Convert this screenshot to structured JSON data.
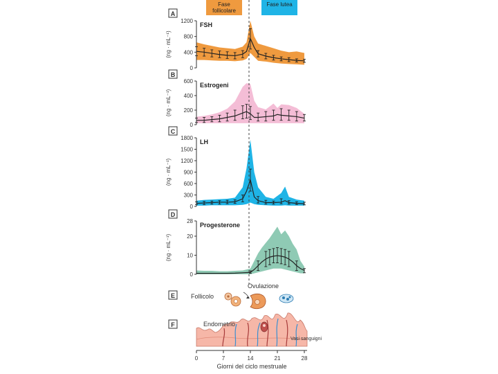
{
  "phases": {
    "follicular": "Fase follicolare",
    "luteal": "Fase lutea"
  },
  "unit_label": "(ng · mL⁻¹)",
  "x_axis": {
    "label": "Giorni del ciclo mestruale",
    "ticks": [
      "0",
      "7",
      "14",
      "21",
      "28"
    ]
  },
  "section_e": {
    "letter": "E",
    "label": "Follicolo",
    "ovulation": "Ovulazione"
  },
  "section_f": {
    "letter": "F",
    "label": "Endometrio",
    "vessels": "Vasi sanguigni"
  },
  "colors": {
    "fsh": "#ef9a3f",
    "estrogen": "#f4bdd6",
    "lh": "#1fb4e6",
    "progesterone": "#8fcab4",
    "endometrium": "#f6b7a8",
    "vessel_blue": "#3a8fd0",
    "vessel_red": "#a63a3a"
  },
  "chart_data": [
    {
      "id": "fsh",
      "type": "area",
      "letter": "A",
      "title": "FSH",
      "xlabel": "Giorni del ciclo mestruale",
      "ylabel": "(ng · mL⁻¹)",
      "ylim": [
        0,
        1200
      ],
      "yticks": [
        "0",
        "400",
        "800",
        "1200"
      ],
      "x": [
        0,
        2,
        4,
        6,
        8,
        10,
        12,
        13,
        14,
        15,
        16,
        18,
        20,
        22,
        24,
        26,
        28
      ],
      "mean": [
        420,
        400,
        370,
        340,
        320,
        310,
        350,
        420,
        750,
        520,
        360,
        300,
        260,
        230,
        210,
        190,
        180
      ],
      "upper": [
        650,
        600,
        560,
        520,
        500,
        480,
        540,
        650,
        1200,
        800,
        620,
        560,
        500,
        440,
        400,
        420,
        380
      ],
      "lower": [
        200,
        200,
        190,
        180,
        180,
        170,
        190,
        230,
        380,
        280,
        180,
        160,
        130,
        110,
        100,
        90,
        80
      ],
      "errbar": [
        [
          0,
          310,
          540
        ],
        [
          2,
          300,
          500
        ],
        [
          4,
          280,
          460
        ],
        [
          6,
          260,
          430
        ],
        [
          8,
          240,
          410
        ],
        [
          10,
          230,
          390
        ],
        [
          12,
          260,
          440
        ],
        [
          14,
          480,
          1000
        ],
        [
          16,
          280,
          440
        ],
        [
          18,
          230,
          370
        ],
        [
          20,
          200,
          320
        ],
        [
          22,
          180,
          280
        ],
        [
          24,
          160,
          260
        ],
        [
          26,
          150,
          230
        ],
        [
          28,
          140,
          220
        ]
      ]
    },
    {
      "id": "estrogeni",
      "type": "area",
      "letter": "B",
      "title": "Estrogeni",
      "xlabel": "Giorni del ciclo mestruale",
      "ylabel": "(ng · mL⁻¹)",
      "ylim": [
        0,
        600
      ],
      "yticks": [
        "0",
        "200",
        "400",
        "600"
      ],
      "x": [
        0,
        2,
        4,
        6,
        8,
        10,
        11,
        12,
        13,
        14,
        15,
        16,
        18,
        20,
        21,
        22,
        24,
        26,
        28
      ],
      "mean": [
        60,
        60,
        70,
        80,
        100,
        120,
        140,
        160,
        180,
        150,
        100,
        100,
        110,
        120,
        140,
        130,
        120,
        110,
        90
      ],
      "upper": [
        110,
        120,
        140,
        170,
        220,
        320,
        420,
        520,
        570,
        560,
        330,
        240,
        210,
        290,
        230,
        280,
        270,
        230,
        150
      ],
      "lower": [
        20,
        20,
        20,
        20,
        20,
        20,
        20,
        20,
        20,
        20,
        20,
        20,
        20,
        20,
        20,
        20,
        20,
        20,
        20
      ],
      "errbar": [
        [
          0,
          30,
          90
        ],
        [
          2,
          30,
          100
        ],
        [
          4,
          40,
          110
        ],
        [
          6,
          40,
          130
        ],
        [
          8,
          50,
          160
        ],
        [
          10,
          60,
          200
        ],
        [
          12,
          80,
          260
        ],
        [
          13,
          90,
          280
        ],
        [
          14,
          70,
          250
        ],
        [
          16,
          50,
          160
        ],
        [
          18,
          50,
          180
        ],
        [
          20,
          60,
          200
        ],
        [
          22,
          60,
          220
        ],
        [
          24,
          60,
          200
        ],
        [
          26,
          50,
          180
        ],
        [
          28,
          50,
          140
        ]
      ]
    },
    {
      "id": "lh",
      "type": "area",
      "letter": "C",
      "title": "LH",
      "xlabel": "Giorni del ciclo mestruale",
      "ylabel": "(ng · mL⁻¹)",
      "ylim": [
        0,
        1800
      ],
      "yticks": [
        "0",
        "300",
        "600",
        "900",
        "1200",
        "1500",
        "1800"
      ],
      "x": [
        0,
        2,
        4,
        6,
        8,
        10,
        12,
        13,
        14,
        15,
        16,
        18,
        20,
        22,
        23,
        24,
        26,
        28
      ],
      "mean": [
        80,
        90,
        100,
        110,
        110,
        120,
        200,
        400,
        700,
        250,
        150,
        100,
        100,
        110,
        150,
        100,
        80,
        70
      ],
      "upper": [
        150,
        170,
        180,
        190,
        200,
        230,
        500,
        1000,
        1750,
        900,
        500,
        250,
        200,
        350,
        520,
        250,
        180,
        150
      ],
      "lower": [
        20,
        20,
        30,
        30,
        30,
        30,
        40,
        60,
        100,
        60,
        40,
        30,
        20,
        20,
        30,
        20,
        20,
        20
      ],
      "errbar": [
        [
          0,
          50,
          120
        ],
        [
          2,
          50,
          130
        ],
        [
          4,
          60,
          140
        ],
        [
          6,
          60,
          150
        ],
        [
          8,
          70,
          160
        ],
        [
          10,
          80,
          170
        ],
        [
          12,
          120,
          300
        ],
        [
          14,
          400,
          980
        ],
        [
          16,
          90,
          260
        ],
        [
          18,
          60,
          160
        ],
        [
          20,
          60,
          140
        ],
        [
          22,
          70,
          200
        ],
        [
          24,
          60,
          150
        ],
        [
          26,
          50,
          120
        ],
        [
          28,
          40,
          110
        ]
      ]
    },
    {
      "id": "progesterone",
      "type": "area",
      "letter": "D",
      "title": "Progesterone",
      "xlabel": "Giorni del ciclo mestruale",
      "ylabel": "(ng · mL⁻¹)",
      "ylim": [
        0,
        28
      ],
      "yticks": [
        "0",
        "10",
        "20",
        "28"
      ],
      "x": [
        0,
        2,
        4,
        6,
        8,
        10,
        12,
        14,
        15,
        16,
        17,
        18,
        19,
        20,
        21,
        22,
        23,
        24,
        25,
        26,
        27,
        28
      ],
      "mean": [
        0.5,
        0.5,
        0.5,
        0.5,
        0.5,
        0.6,
        0.8,
        1.0,
        2.5,
        4.5,
        6.5,
        8.0,
        9.0,
        9.5,
        9.8,
        9.5,
        9.0,
        8.0,
        6.5,
        4.5,
        3.0,
        2.0
      ],
      "upper": [
        2.0,
        1.8,
        1.8,
        1.6,
        1.6,
        1.8,
        2.0,
        3.0,
        7.0,
        11.0,
        14.0,
        16.5,
        19.0,
        22.0,
        25.0,
        21.0,
        23.0,
        20.0,
        16.0,
        13.0,
        7.0,
        4.0
      ],
      "lower": [
        0.0,
        0.0,
        0.0,
        0.0,
        0.0,
        0.0,
        0.0,
        0.0,
        0.5,
        1.0,
        1.5,
        2.0,
        2.5,
        3.0,
        3.0,
        3.0,
        2.5,
        2.0,
        1.5,
        1.0,
        0.5,
        0.5
      ],
      "errbar": [
        [
          14,
          0.5,
          1.8
        ],
        [
          16,
          2.0,
          7.0
        ],
        [
          18,
          4.0,
          12.0
        ],
        [
          19,
          5.0,
          13.0
        ],
        [
          20,
          6.0,
          13.5
        ],
        [
          21,
          6.0,
          14.0
        ],
        [
          22,
          5.5,
          13.5
        ],
        [
          23,
          5.0,
          13.0
        ],
        [
          24,
          4.0,
          12.0
        ],
        [
          26,
          2.0,
          7.0
        ],
        [
          28,
          0.8,
          3.0
        ]
      ]
    }
  ]
}
